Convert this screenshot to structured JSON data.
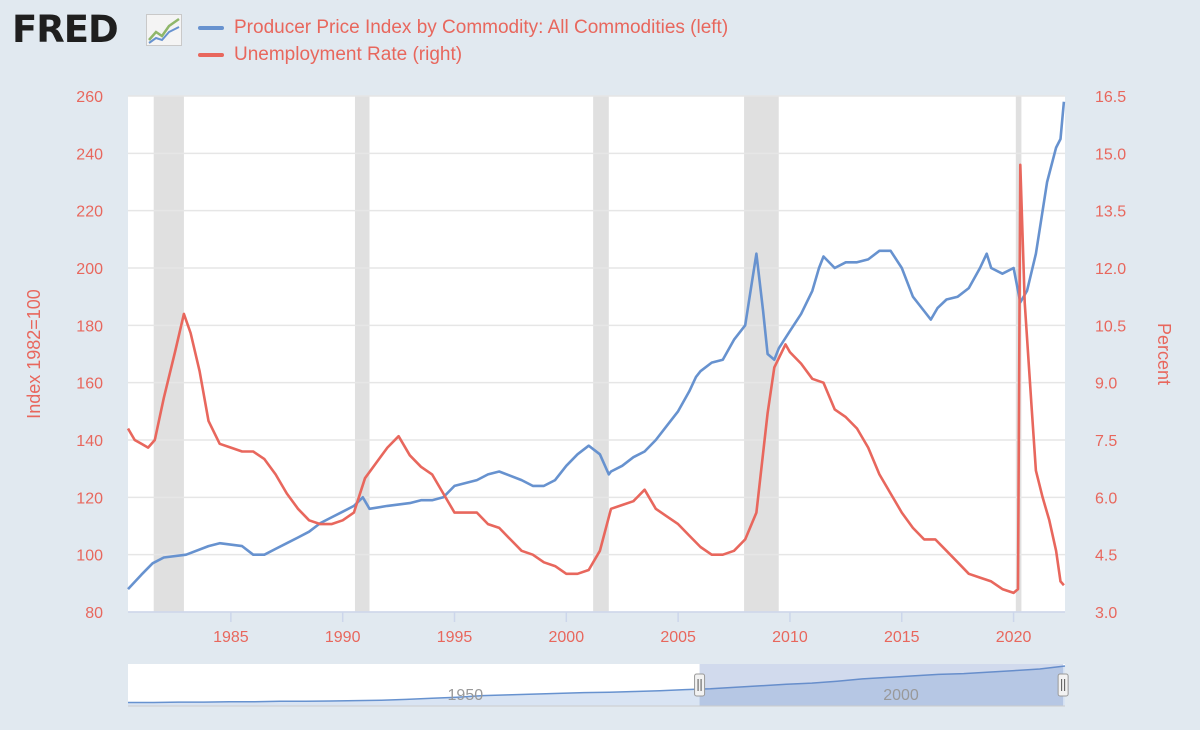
{
  "app": {
    "logo_text": "FRED",
    "logo_icon": "line-chart-icon"
  },
  "colors": {
    "ppi": "#6792cf",
    "unrate": "#e8675d",
    "axis_text": "#e8675d",
    "recession": "#e0e0e0",
    "plot_bg": "#ffffff",
    "page_bg": "#e1e9f0",
    "grid": "#e6e6e6"
  },
  "legend": [
    {
      "label": "Producer Price Index by Commodity: All Commodities (left)",
      "color": "#6792cf"
    },
    {
      "label": "Unemployment Rate (right)",
      "color": "#e8675d"
    }
  ],
  "chart_data": {
    "type": "line",
    "title": "",
    "xlabel": "",
    "xlim": [
      1980.4,
      2022.3
    ],
    "x_ticks": [
      1985,
      1990,
      1995,
      2000,
      2005,
      2010,
      2015,
      2020
    ],
    "x_tick_labels": [
      "1985",
      "1990",
      "1995",
      "2000",
      "2005",
      "2010",
      "2015",
      "2020"
    ],
    "left_axis": {
      "label": "Index 1982=100",
      "ylim": [
        80,
        260
      ],
      "ticks": [
        80,
        100,
        120,
        140,
        160,
        180,
        200,
        220,
        240,
        260
      ],
      "tick_labels": [
        "80",
        "100",
        "120",
        "140",
        "160",
        "180",
        "200",
        "220",
        "240",
        "260"
      ]
    },
    "right_axis": {
      "label": "Percent",
      "ylim": [
        3.0,
        16.5
      ],
      "ticks": [
        3.0,
        4.5,
        6.0,
        7.5,
        9.0,
        10.5,
        12.0,
        13.5,
        15.0,
        16.5
      ],
      "tick_labels": [
        "3.0",
        "4.5",
        "6.0",
        "7.5",
        "9.0",
        "10.5",
        "12.0",
        "13.5",
        "15.0",
        "16.5"
      ]
    },
    "recessions": [
      [
        1981.55,
        1982.9
      ],
      [
        1990.55,
        1991.2
      ],
      [
        2001.2,
        2001.9
      ],
      [
        2007.95,
        2009.5
      ],
      [
        2020.1,
        2020.35
      ]
    ],
    "series": [
      {
        "name": "Producer Price Index by Commodity: All Commodities (left)",
        "axis": "left",
        "color": "#6792cf",
        "x": [
          1980.4,
          1981.0,
          1981.5,
          1982.0,
          1983.0,
          1984.0,
          1984.5,
          1985.5,
          1986.0,
          1986.5,
          1987.0,
          1987.5,
          1988.0,
          1988.5,
          1989.0,
          1989.5,
          1990.0,
          1990.5,
          1990.9,
          1991.2,
          1992.0,
          1993.0,
          1993.5,
          1994.0,
          1994.5,
          1995.0,
          1996.0,
          1996.5,
          1997.0,
          1998.0,
          1998.5,
          1999.0,
          1999.5,
          2000.0,
          2000.5,
          2001.0,
          2001.5,
          2001.9,
          2002.0,
          2002.5,
          2003.0,
          2003.5,
          2004.0,
          2004.5,
          2005.0,
          2005.5,
          2005.8,
          2006.0,
          2006.5,
          2007.0,
          2007.5,
          2008.0,
          2008.3,
          2008.5,
          2008.8,
          2009.0,
          2009.3,
          2009.5,
          2010.0,
          2010.5,
          2011.0,
          2011.3,
          2011.5,
          2012.0,
          2012.5,
          2013.0,
          2013.5,
          2014.0,
          2014.5,
          2015.0,
          2015.5,
          2016.0,
          2016.3,
          2016.6,
          2017.0,
          2017.5,
          2018.0,
          2018.5,
          2018.8,
          2019.0,
          2019.5,
          2020.0,
          2020.3,
          2020.6,
          2021.0,
          2021.5,
          2021.9,
          2022.1,
          2022.25
        ],
        "values": [
          88,
          93,
          97,
          99,
          100,
          103,
          104,
          103,
          100,
          100,
          102,
          104,
          106,
          108,
          111,
          113,
          115,
          117,
          120,
          116,
          117,
          118,
          119,
          119,
          120,
          124,
          126,
          128,
          129,
          126,
          124,
          124,
          126,
          131,
          135,
          138,
          135,
          128,
          129,
          131,
          134,
          136,
          140,
          145,
          150,
          157,
          162,
          164,
          167,
          168,
          175,
          180,
          195,
          205,
          185,
          170,
          168,
          172,
          178,
          184,
          192,
          200,
          204,
          200,
          202,
          202,
          203,
          206,
          206,
          200,
          190,
          185,
          182,
          186,
          189,
          190,
          193,
          200,
          205,
          200,
          198,
          200,
          188,
          192,
          205,
          230,
          242,
          245,
          258
        ]
      },
      {
        "name": "Unemployment Rate (right)",
        "axis": "right",
        "color": "#e8675d",
        "x": [
          1980.4,
          1980.7,
          1981.0,
          1981.3,
          1981.6,
          1982.0,
          1982.5,
          1982.9,
          1983.2,
          1983.6,
          1984.0,
          1984.5,
          1985.0,
          1985.5,
          1986.0,
          1986.5,
          1987.0,
          1987.5,
          1988.0,
          1988.5,
          1989.0,
          1989.5,
          1990.0,
          1990.5,
          1991.0,
          1991.5,
          1992.0,
          1992.5,
          1993.0,
          1993.5,
          1994.0,
          1994.5,
          1995.0,
          1995.5,
          1996.0,
          1996.5,
          1997.0,
          1997.5,
          1998.0,
          1998.5,
          1999.0,
          1999.5,
          2000.0,
          2000.5,
          2001.0,
          2001.5,
          2002.0,
          2002.5,
          2003.0,
          2003.5,
          2004.0,
          2004.5,
          2005.0,
          2005.5,
          2006.0,
          2006.5,
          2007.0,
          2007.5,
          2008.0,
          2008.5,
          2009.0,
          2009.3,
          2009.8,
          2010.0,
          2010.5,
          2011.0,
          2011.5,
          2012.0,
          2012.5,
          2013.0,
          2013.5,
          2014.0,
          2014.5,
          2015.0,
          2015.5,
          2016.0,
          2016.5,
          2017.0,
          2017.5,
          2018.0,
          2018.5,
          2019.0,
          2019.5,
          2020.0,
          2020.2,
          2020.3,
          2020.5,
          2020.8,
          2021.0,
          2021.3,
          2021.6,
          2021.9,
          2022.1,
          2022.25
        ],
        "values": [
          7.8,
          7.5,
          7.4,
          7.3,
          7.5,
          8.6,
          9.8,
          10.8,
          10.3,
          9.3,
          8.0,
          7.4,
          7.3,
          7.2,
          7.2,
          7.0,
          6.6,
          6.1,
          5.7,
          5.4,
          5.3,
          5.3,
          5.4,
          5.6,
          6.5,
          6.9,
          7.3,
          7.6,
          7.1,
          6.8,
          6.6,
          6.1,
          5.6,
          5.6,
          5.6,
          5.3,
          5.2,
          4.9,
          4.6,
          4.5,
          4.3,
          4.2,
          4.0,
          4.0,
          4.1,
          4.6,
          5.7,
          5.8,
          5.9,
          6.2,
          5.7,
          5.5,
          5.3,
          5.0,
          4.7,
          4.5,
          4.5,
          4.6,
          4.9,
          5.6,
          8.2,
          9.4,
          10.0,
          9.8,
          9.5,
          9.1,
          9.0,
          8.3,
          8.1,
          7.8,
          7.3,
          6.6,
          6.1,
          5.6,
          5.2,
          4.9,
          4.9,
          4.6,
          4.3,
          4.0,
          3.9,
          3.8,
          3.6,
          3.5,
          3.6,
          14.7,
          11.1,
          8.4,
          6.7,
          6.0,
          5.4,
          4.6,
          3.8,
          3.7
        ]
      }
    ]
  },
  "navigator": {
    "label_left": "1950",
    "label_right": "2000",
    "series_color": "#6792cf",
    "range_start_fraction": 0.61,
    "range_end_fraction": 0.998,
    "values": [
      4,
      4,
      5,
      5,
      6,
      6,
      7,
      7,
      8,
      9,
      10,
      12,
      15,
      18,
      22,
      24,
      26,
      28,
      30,
      31,
      33,
      35,
      38,
      40,
      44,
      48,
      52,
      55,
      60,
      66,
      70,
      74,
      78,
      80,
      84,
      88,
      92,
      100
    ]
  }
}
